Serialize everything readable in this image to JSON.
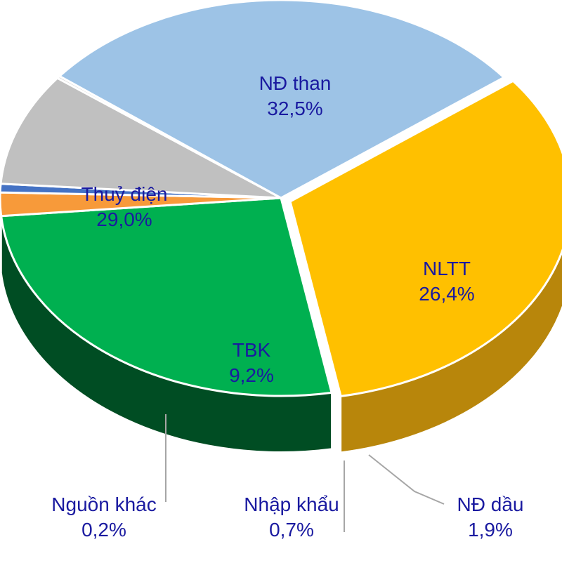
{
  "chart_data": {
    "type": "pie",
    "title": "",
    "slices": [
      {
        "label": "NĐ than",
        "pct_label": "32,5%",
        "value": 32.5,
        "color": "#ffc000",
        "side_color": "#b8860b"
      },
      {
        "label": "NLTT",
        "pct_label": "26,4%",
        "value": 26.4,
        "color": "#00b050",
        "side_color": "#004d23"
      },
      {
        "label": "NĐ dầu",
        "pct_label": "1,9%",
        "value": 1.9,
        "color": "#f79a3a",
        "side_color": "#6b3a10"
      },
      {
        "label": "Nhập khẩu",
        "pct_label": "0,7%",
        "value": 0.7,
        "color": "#4472c4",
        "side_color": "#1a2f5a"
      },
      {
        "label": "TBK",
        "pct_label": "9,2%",
        "value": 9.2,
        "color": "#c0c0c0",
        "side_color": "#4a4a4a"
      },
      {
        "label": "Nguồn khác",
        "pct_label": "0,2%",
        "value": 0.2,
        "color": "#d9d9d9",
        "side_color": "#8a8a8a"
      },
      {
        "label": "Thuỷ điện",
        "pct_label": "29,0%",
        "value": 29.0,
        "color": "#9dc3e6",
        "side_color": "#54708e"
      }
    ],
    "label_color": "#1a1aa0",
    "legend": "none"
  }
}
